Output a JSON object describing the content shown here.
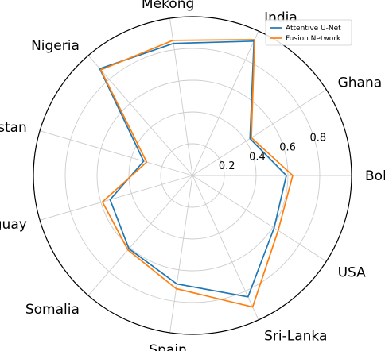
{
  "chart_data": {
    "type": "radar",
    "categories": [
      "Bolivia",
      "Ghana",
      "India",
      "Mekong",
      "Nigeria",
      "Pakistan",
      "Paraguay",
      "Somalia",
      "Spain",
      "Sri-Lanka",
      "USA"
    ],
    "rlim": [
      0,
      1.0
    ],
    "radial_ticks": [
      0.2,
      0.4,
      0.6,
      0.8
    ],
    "radial_tick_labels": [
      "0.2",
      "0.4",
      "0.6",
      "0.8"
    ],
    "grid": true,
    "legend_position": "upper-right",
    "series": [
      {
        "name": "Attentive U-Net",
        "color": "#1f77b4",
        "values": [
          0.59,
          0.43,
          0.93,
          0.84,
          0.89,
          0.32,
          0.54,
          0.61,
          0.69,
          0.84,
          0.61
        ]
      },
      {
        "name": "Fusion Network",
        "color": "#ff7f0e",
        "values": [
          0.63,
          0.44,
          0.94,
          0.86,
          0.88,
          0.3,
          0.59,
          0.62,
          0.72,
          0.91,
          0.64
        ]
      }
    ]
  }
}
